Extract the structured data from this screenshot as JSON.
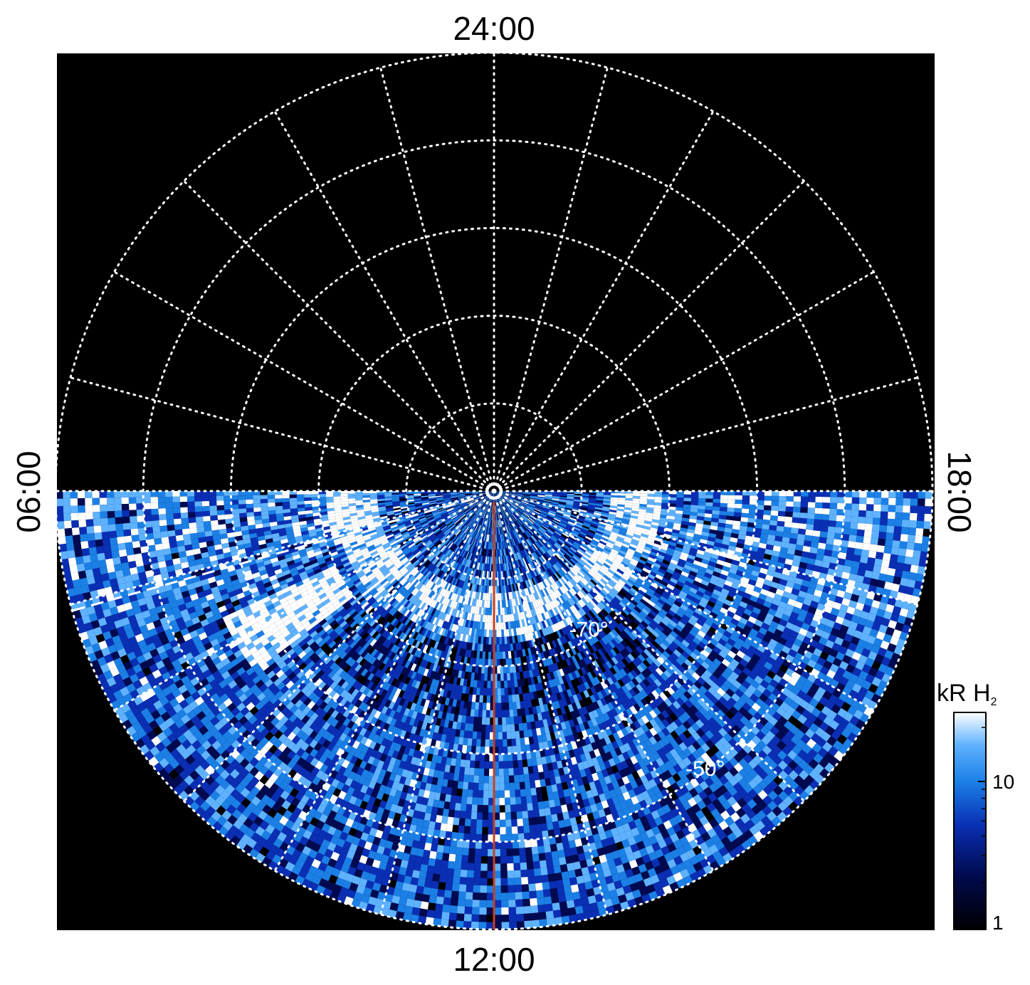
{
  "chart_data": {
    "type": "heatmap",
    "projection": "polar",
    "title": "",
    "local_time_labels": {
      "top": "24:00",
      "bottom": "12:00",
      "left": "06:00",
      "right": "18:00"
    },
    "latitude_labels": [
      {
        "lat": -70,
        "text": "-70°"
      },
      {
        "lat": -50,
        "text": "-50°"
      }
    ],
    "latitude_circles_deg": [
      -80,
      -70,
      -60,
      -50,
      -40
    ],
    "meridian_step_hours": 1,
    "colorbar": {
      "label_prefix": "kR H",
      "label_subscript": "2",
      "scale": "log",
      "range": [
        1,
        25
      ],
      "ticks": [
        {
          "value": 10,
          "label": "10"
        },
        {
          "value": 1,
          "label": "1"
        }
      ],
      "colors": [
        "#000000",
        "#000a50",
        "#0a2fb4",
        "#1b7fe6",
        "#5fb2ff",
        "#ffffff"
      ]
    },
    "highlights": {
      "meridian_line": {
        "local_time": "12:00",
        "color": "#c8401c"
      },
      "dashed_boundary": {
        "style": "dashed",
        "color": "#ffffff",
        "lt_start": "06:00",
        "lt_end": "~06:50"
      }
    },
    "coverage": "emission observed only on the dayside half (06:00 → 12:00 → 18:00); nightside hemisphere has no data"
  }
}
